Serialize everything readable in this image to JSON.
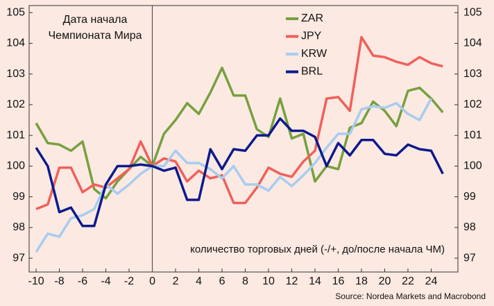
{
  "chart_data": {
    "type": "line",
    "annotation_lines": [
      "Дата начала",
      "Чемпионата Мира"
    ],
    "x_label": "количество торговых дней (-/+, до/после начала ЧМ)",
    "source": "Source: Nordea Markets and Macrobond",
    "x": [
      -10,
      -9,
      -8,
      -7,
      -6,
      -5,
      -4,
      -3,
      -2,
      -1,
      0,
      1,
      2,
      3,
      4,
      5,
      6,
      7,
      8,
      9,
      10,
      11,
      12,
      13,
      14,
      15,
      16,
      17,
      18,
      19,
      20,
      21,
      22,
      23,
      24,
      25
    ],
    "series": [
      {
        "name": "ZAR",
        "color": "#76a03e",
        "values": [
          101.4,
          100.75,
          100.7,
          100.5,
          100.8,
          99.25,
          98.95,
          99.5,
          99.9,
          100.3,
          100.0,
          101.05,
          101.5,
          102.05,
          101.7,
          102.4,
          103.2,
          102.3,
          102.3,
          101.2,
          100.95,
          102.2,
          100.9,
          101.05,
          99.5,
          100.0,
          99.9,
          101.25,
          101.4,
          102.1,
          101.8,
          101.3,
          102.45,
          102.55,
          102.2,
          101.75
        ]
      },
      {
        "name": "JPY",
        "color": "#f0605a",
        "values": [
          98.6,
          98.75,
          99.95,
          99.95,
          99.15,
          99.4,
          99.3,
          99.6,
          99.9,
          100.8,
          100.0,
          100.25,
          100.15,
          99.5,
          99.85,
          99.6,
          99.7,
          98.8,
          98.8,
          99.3,
          99.95,
          99.75,
          99.65,
          100.15,
          100.5,
          102.2,
          102.25,
          101.8,
          104.2,
          103.6,
          103.55,
          103.4,
          103.3,
          103.55,
          103.35,
          103.25
        ]
      },
      {
        "name": "KRW",
        "color": "#a6cdf0",
        "values": [
          97.2,
          97.8,
          97.7,
          98.3,
          98.4,
          98.6,
          99.4,
          99.1,
          99.4,
          99.75,
          100.0,
          100.0,
          100.5,
          100.1,
          100.1,
          99.9,
          99.6,
          100.0,
          99.4,
          99.4,
          99.2,
          99.65,
          99.35,
          99.7,
          100.1,
          100.6,
          101.05,
          101.05,
          101.85,
          101.95,
          101.9,
          102.05,
          101.7,
          101.5,
          102.2,
          null
        ]
      },
      {
        "name": "BRL",
        "color": "#0b1a8c",
        "values": [
          100.6,
          100.0,
          98.5,
          98.65,
          98.05,
          98.05,
          99.4,
          100.0,
          100.0,
          100.05,
          100.0,
          99.85,
          99.95,
          98.9,
          98.9,
          100.55,
          99.9,
          100.55,
          100.5,
          101.0,
          101.0,
          101.55,
          101.15,
          101.15,
          100.95,
          100.0,
          100.75,
          100.35,
          100.85,
          100.85,
          100.4,
          100.35,
          100.7,
          100.55,
          100.5,
          99.75
        ]
      }
    ],
    "xlim": [
      -10.6,
      26.3
    ],
    "xticks": [
      -10,
      -8,
      -6,
      -4,
      -2,
      0,
      2,
      4,
      6,
      8,
      10,
      12,
      14,
      16,
      18,
      20,
      22,
      24
    ],
    "ylim": [
      96.55,
      105.23
    ],
    "yticks": [
      97,
      98,
      99,
      100,
      101,
      102,
      103,
      104,
      105
    ],
    "y2lim": [
      96.55,
      105.23
    ],
    "y2ticks": [
      97,
      98,
      99,
      100,
      101,
      102,
      103,
      104,
      105
    ],
    "marker_x": 0
  }
}
